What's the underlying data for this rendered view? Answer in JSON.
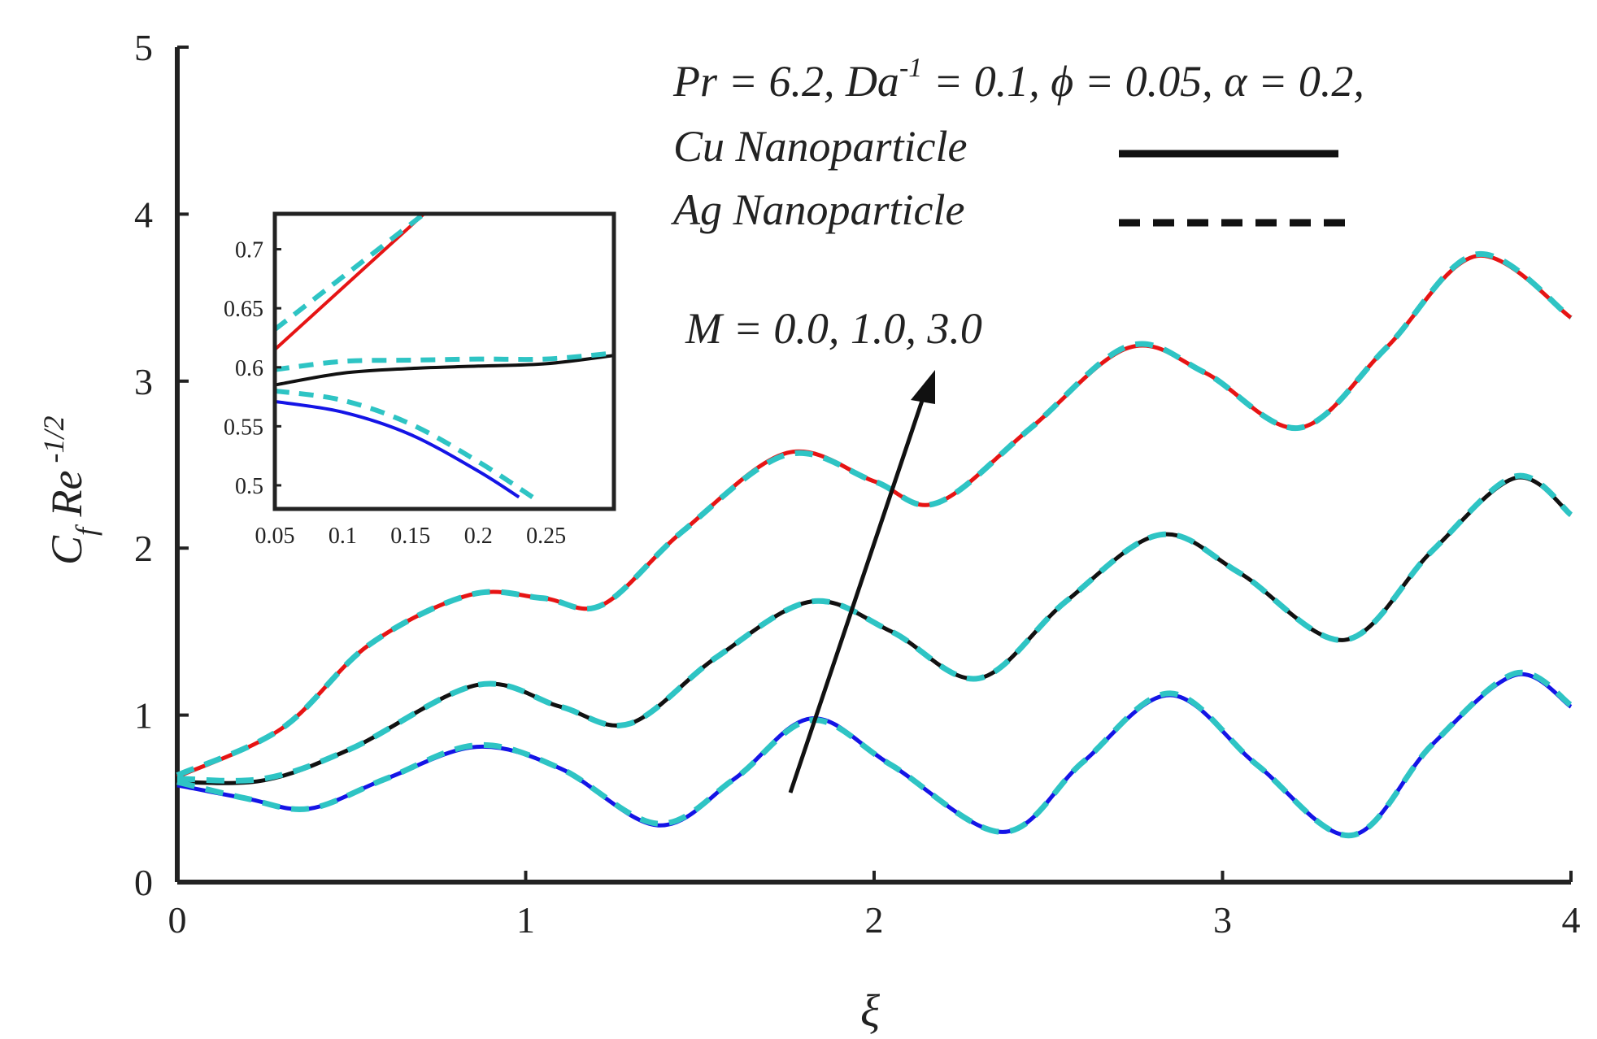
{
  "chart_data": {
    "type": "line",
    "xlabel": "ξ",
    "ylabel": {
      "base": "C",
      "sub": "f",
      "mid": " Re",
      "sup": " -1/2"
    },
    "xlim": [
      0,
      4
    ],
    "ylim": [
      0,
      5
    ],
    "xticks": [
      "0",
      "1",
      "2",
      "3",
      "4"
    ],
    "yticks": [
      "0",
      "1",
      "2",
      "3",
      "4",
      "5"
    ],
    "annotations": {
      "params": {
        "pre": "Pr = 6.2, Da",
        "sup": "-1",
        "post": " = 0.1, ϕ = 0.05, α = 0.2,"
      },
      "legend_cu": "Cu  Nanoparticle",
      "legend_ag": "Ag Nanoparticle",
      "arrow_label": "M = 0.0, 1.0, 3.0"
    },
    "colors": {
      "m0_cu": "#1414e6",
      "m1_cu": "#111111",
      "m3_cu": "#e61414",
      "ag": "#2ec4c4",
      "axis": "#222222"
    },
    "series": [
      {
        "name": "M = 0.0 (Cu)",
        "style": "solid",
        "color_key": "m0_cu",
        "x": [
          0,
          0.2,
          0.38,
          0.6,
          0.86,
          1.1,
          1.38,
          1.6,
          1.82,
          2.05,
          2.37,
          2.6,
          2.85,
          3.1,
          3.37,
          3.6,
          3.84,
          4.0
        ],
        "y": [
          0.58,
          0.5,
          0.44,
          0.62,
          0.81,
          0.68,
          0.34,
          0.62,
          0.98,
          0.7,
          0.3,
          0.72,
          1.12,
          0.7,
          0.28,
          0.82,
          1.24,
          1.05
        ]
      },
      {
        "name": "M = 1.0 (Cu)",
        "style": "solid",
        "color_key": "m1_cu",
        "x": [
          0,
          0.25,
          0.5,
          0.86,
          1.1,
          1.3,
          1.55,
          1.82,
          2.05,
          2.3,
          2.55,
          2.82,
          3.05,
          3.35,
          3.6,
          3.84,
          4.0
        ],
        "y": [
          0.6,
          0.61,
          0.8,
          1.18,
          1.05,
          0.95,
          1.35,
          1.68,
          1.5,
          1.22,
          1.68,
          2.08,
          1.85,
          1.45,
          1.98,
          2.42,
          2.2
        ]
      },
      {
        "name": "M = 3.0 (Cu)",
        "style": "solid",
        "color_key": "m3_cu",
        "x": [
          0,
          0.3,
          0.55,
          0.84,
          1.05,
          1.22,
          1.45,
          1.75,
          2.0,
          2.18,
          2.45,
          2.73,
          2.95,
          3.22,
          3.47,
          3.73,
          4.0
        ],
        "y": [
          0.63,
          0.92,
          1.42,
          1.72,
          1.7,
          1.66,
          2.1,
          2.57,
          2.4,
          2.27,
          2.72,
          3.2,
          3.05,
          2.72,
          3.2,
          3.75,
          3.38
        ]
      },
      {
        "name": "M = 0.0 (Ag)",
        "style": "dashed",
        "color_key": "ag",
        "x": [
          0,
          0.2,
          0.38,
          0.6,
          0.86,
          1.1,
          1.38,
          1.6,
          1.82,
          2.05,
          2.37,
          2.6,
          2.85,
          3.1,
          3.37,
          3.6,
          3.84,
          4.0
        ],
        "y": [
          0.6,
          0.5,
          0.44,
          0.62,
          0.82,
          0.68,
          0.35,
          0.62,
          0.97,
          0.7,
          0.3,
          0.72,
          1.13,
          0.7,
          0.28,
          0.82,
          1.25,
          1.06
        ]
      },
      {
        "name": "M = 1.0 (Ag)",
        "style": "dashed",
        "color_key": "ag",
        "x": [
          0,
          0.25,
          0.5,
          0.86,
          1.1,
          1.3,
          1.55,
          1.82,
          2.05,
          2.3,
          2.55,
          2.82,
          3.05,
          3.35,
          3.6,
          3.84,
          4.0
        ],
        "y": [
          0.62,
          0.62,
          0.8,
          1.18,
          1.05,
          0.95,
          1.35,
          1.68,
          1.5,
          1.22,
          1.68,
          2.08,
          1.85,
          1.45,
          1.98,
          2.43,
          2.2
        ]
      },
      {
        "name": "M = 3.0 (Ag)",
        "style": "dashed",
        "color_key": "ag",
        "x": [
          0,
          0.3,
          0.55,
          0.84,
          1.05,
          1.22,
          1.45,
          1.75,
          2.0,
          2.18,
          2.45,
          2.73,
          2.95,
          3.22,
          3.47,
          3.73,
          4.0
        ],
        "y": [
          0.64,
          0.92,
          1.42,
          1.72,
          1.7,
          1.66,
          2.1,
          2.56,
          2.4,
          2.27,
          2.72,
          3.21,
          3.05,
          2.72,
          3.2,
          3.76,
          3.38
        ]
      }
    ],
    "inset": {
      "xlim": [
        0.05,
        0.3
      ],
      "ylim": [
        0.48,
        0.73
      ],
      "xticks": [
        "0.05",
        "0.1",
        "0.15",
        "0.2",
        "0.25"
      ],
      "yticks": [
        "0.5",
        "0.55",
        "0.6",
        "0.65",
        "0.7"
      ],
      "series": [
        {
          "name": "M = 3.0 (Cu)",
          "style": "solid",
          "color_key": "m3_cu",
          "x": [
            0.05,
            0.16
          ],
          "y": [
            0.615,
            0.73
          ]
        },
        {
          "name": "M = 3.0 (Ag)",
          "style": "dashed",
          "color_key": "ag",
          "x": [
            0.05,
            0.16
          ],
          "y": [
            0.632,
            0.73
          ]
        },
        {
          "name": "M = 1.0 (Cu)",
          "style": "solid",
          "color_key": "m1_cu",
          "x": [
            0.05,
            0.1,
            0.15,
            0.2,
            0.25,
            0.3
          ],
          "y": [
            0.585,
            0.595,
            0.599,
            0.601,
            0.603,
            0.61
          ]
        },
        {
          "name": "M = 1.0 (Ag)",
          "style": "dashed",
          "color_key": "ag",
          "x": [
            0.05,
            0.1,
            0.15,
            0.2,
            0.25,
            0.3
          ],
          "y": [
            0.598,
            0.605,
            0.606,
            0.607,
            0.607,
            0.612
          ]
        },
        {
          "name": "M = 0.0 (Cu)",
          "style": "solid",
          "color_key": "m0_cu",
          "x": [
            0.05,
            0.1,
            0.15,
            0.2,
            0.23
          ],
          "y": [
            0.571,
            0.562,
            0.543,
            0.512,
            0.49
          ]
        },
        {
          "name": "M = 0.0 (Ag)",
          "style": "dashed",
          "color_key": "ag",
          "x": [
            0.05,
            0.1,
            0.15,
            0.2,
            0.24
          ],
          "y": [
            0.58,
            0.572,
            0.552,
            0.52,
            0.49
          ]
        }
      ]
    }
  }
}
